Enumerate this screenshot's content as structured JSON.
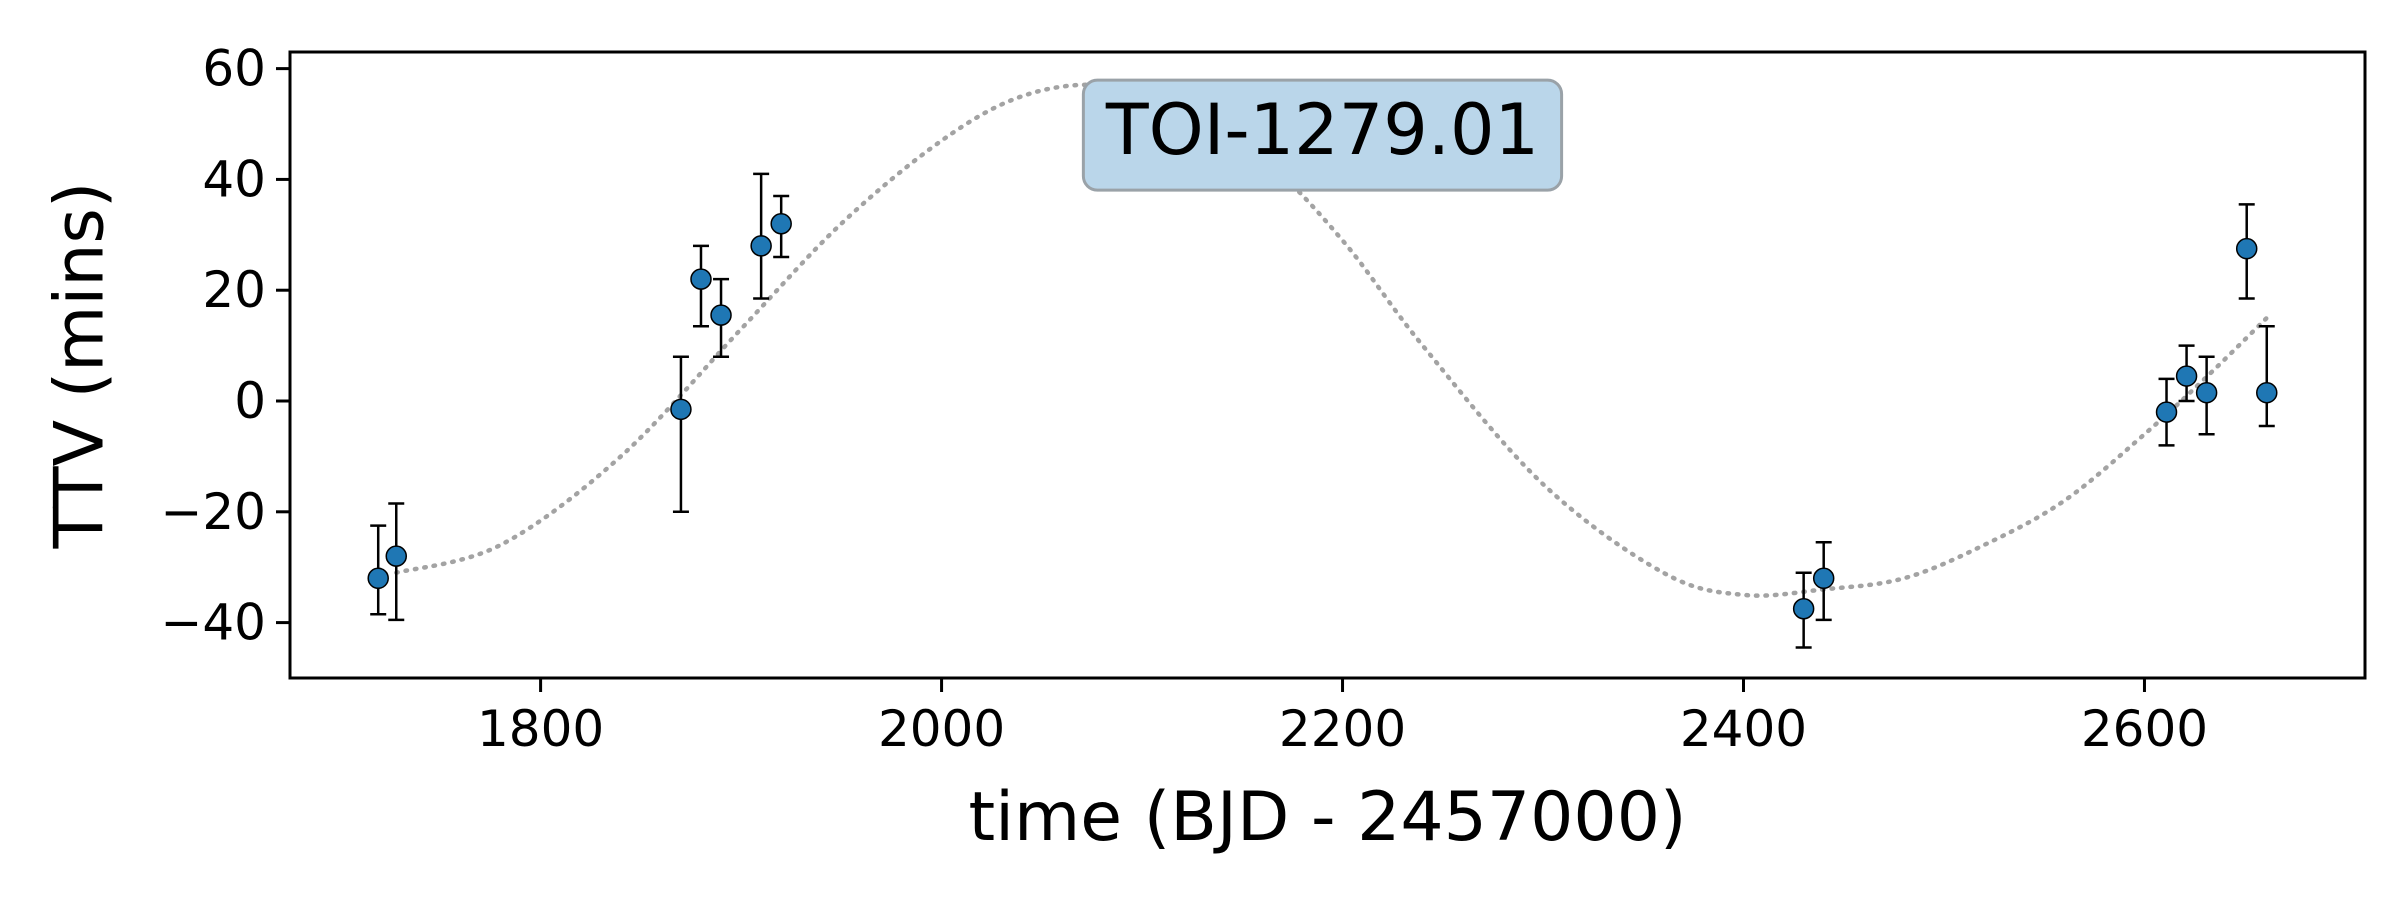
{
  "chart_data": {
    "type": "scatter",
    "title": "",
    "xlabel": "time (BJD - 2457000)",
    "ylabel": "TTV (mins)",
    "xlim": [
      1675,
      2710
    ],
    "ylim": [
      -50,
      63
    ],
    "xticks": [
      1800,
      2000,
      2200,
      2400,
      2600
    ],
    "yticks": [
      -40,
      -20,
      0,
      20,
      40,
      60
    ],
    "grid": false,
    "legend": "none",
    "annotation": {
      "text": "TOI-1279.01",
      "x": 2190,
      "y": 48,
      "box_color": "#bad6ea",
      "edge_color": "#9aa2a8"
    },
    "series": [
      {
        "kind": "points_with_errorbars",
        "color": "#1f77b4",
        "x": [
          1719,
          1728,
          1870,
          1880,
          1890,
          1910,
          1920,
          2430,
          2440,
          2611,
          2621,
          2631,
          2651,
          2661
        ],
        "y": [
          -32,
          -28,
          -1.5,
          22,
          15.5,
          28,
          32,
          -37.5,
          -32,
          -2,
          4.5,
          1.5,
          27.5,
          1.5
        ],
        "err_low": [
          6.5,
          11.5,
          18.5,
          8.5,
          7.5,
          9.5,
          6,
          7,
          7.5,
          6,
          4.5,
          7.5,
          9,
          6
        ],
        "err_high": [
          9.5,
          9.5,
          9.5,
          6,
          6.5,
          13,
          5,
          6.5,
          6.5,
          6,
          5.5,
          6.5,
          8,
          12
        ]
      },
      {
        "kind": "model_curve",
        "color": "#a3a3a3",
        "style": "dotted",
        "x": [
          1728,
          1780,
          1840,
          1900,
          1950,
          2000,
          2040,
          2080,
          2120,
          2160,
          2200,
          2240,
          2300,
          2360,
          2400,
          2440,
          2480,
          2520,
          2560,
          2600,
          2630,
          2661
        ],
        "y": [
          -31,
          -26,
          -10,
          13,
          32,
          47,
          55,
          57,
          53,
          44,
          29,
          10,
          -15,
          -31,
          -35,
          -34,
          -32,
          -26,
          -18,
          -6,
          4,
          15
        ]
      }
    ]
  }
}
